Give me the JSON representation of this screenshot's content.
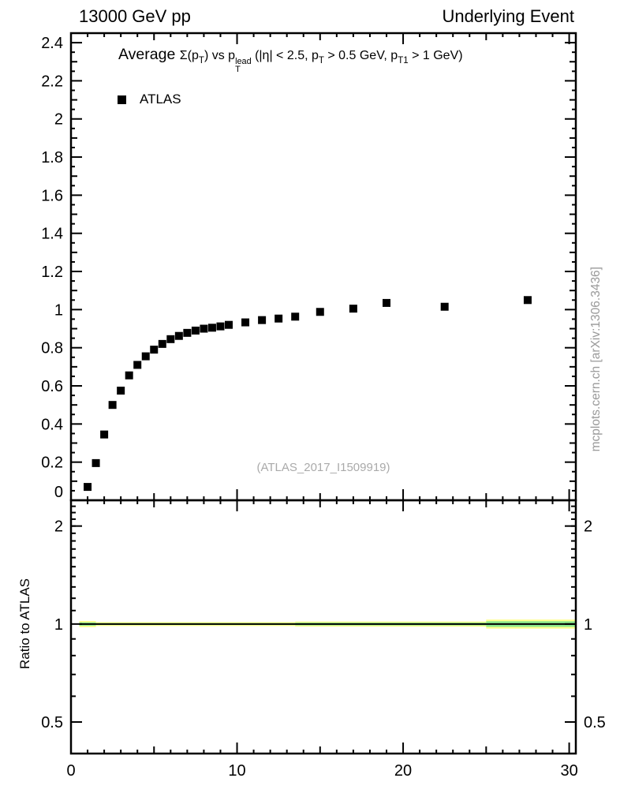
{
  "header": {
    "left": "13000 GeV pp",
    "right": "Underlying Event"
  },
  "watermark": "(ATLAS_2017_I1509919)",
  "side_label": "mcplots.cern.ch [arXiv:1306.3436]",
  "chart_data": [
    {
      "type": "scatter",
      "panel": "main",
      "title": "Average Σ(pT) vs pT^lead (|η| < 2.5, pT > 0.5 GeV, pT1 > 1 GeV)",
      "title_parts": [
        {
          "t": "Average ",
          "big": true
        },
        {
          "t": "Σ(p"
        },
        {
          "t": "T",
          "sub": true
        },
        {
          "t": ") vs p"
        },
        {
          "stack": {
            "top": "lead",
            "bottom": "T"
          }
        },
        {
          "t": " (|η| < 2.5, p"
        },
        {
          "t": "T",
          "sub": true
        },
        {
          "t": " > 0.5 GeV, p"
        },
        {
          "t": "T1",
          "sub": true
        },
        {
          "t": " > 1 GeV)"
        }
      ],
      "legend_position": "top-left",
      "xlim": [
        0,
        30.4
      ],
      "ylim": [
        0,
        2.45
      ],
      "xticks_major": [
        0,
        10,
        20,
        30
      ],
      "xticks_minor_step": 1,
      "yticks_major_step": 0.2,
      "yticks_minor_step": 0.05,
      "grid": false,
      "series": [
        {
          "name": "ATLAS",
          "marker": "filled-square",
          "color": "#000000",
          "x": [
            1,
            1.5,
            2,
            2.5,
            3,
            3.5,
            4,
            4.5,
            5,
            5.5,
            6,
            6.5,
            7,
            7.5,
            8,
            8.5,
            9,
            9.5,
            10.5,
            11.5,
            12.5,
            13.5,
            15,
            17,
            19,
            22.5,
            27.5
          ],
          "y": [
            0.07,
            0.195,
            0.345,
            0.5,
            0.575,
            0.655,
            0.71,
            0.755,
            0.79,
            0.82,
            0.845,
            0.862,
            0.878,
            0.89,
            0.9,
            0.905,
            0.912,
            0.92,
            0.933,
            0.945,
            0.953,
            0.963,
            0.988,
            1.005,
            1.035,
            1.015,
            1.05
          ]
        }
      ]
    },
    {
      "type": "band",
      "panel": "ratio",
      "ylabel": "Ratio to ATLAS",
      "yscale": "log",
      "ylim": [
        0.4,
        2.4
      ],
      "yticks_labeled": [
        0.5,
        1,
        2
      ],
      "line_y": 1,
      "colors": {
        "green": "#8ce98c",
        "yellow": "#ffff8c"
      },
      "band_segments": [
        {
          "x0": 0.5,
          "x1": 1.5,
          "green": 0.012,
          "yellow": 0.022
        },
        {
          "x0": 1.5,
          "x1": 13.5,
          "green": 0.007,
          "yellow": 0.014
        },
        {
          "x0": 13.5,
          "x1": 25,
          "green": 0.01,
          "yellow": 0.018
        },
        {
          "x0": 25,
          "x1": 30.4,
          "green": 0.02,
          "yellow": 0.032
        }
      ]
    }
  ]
}
